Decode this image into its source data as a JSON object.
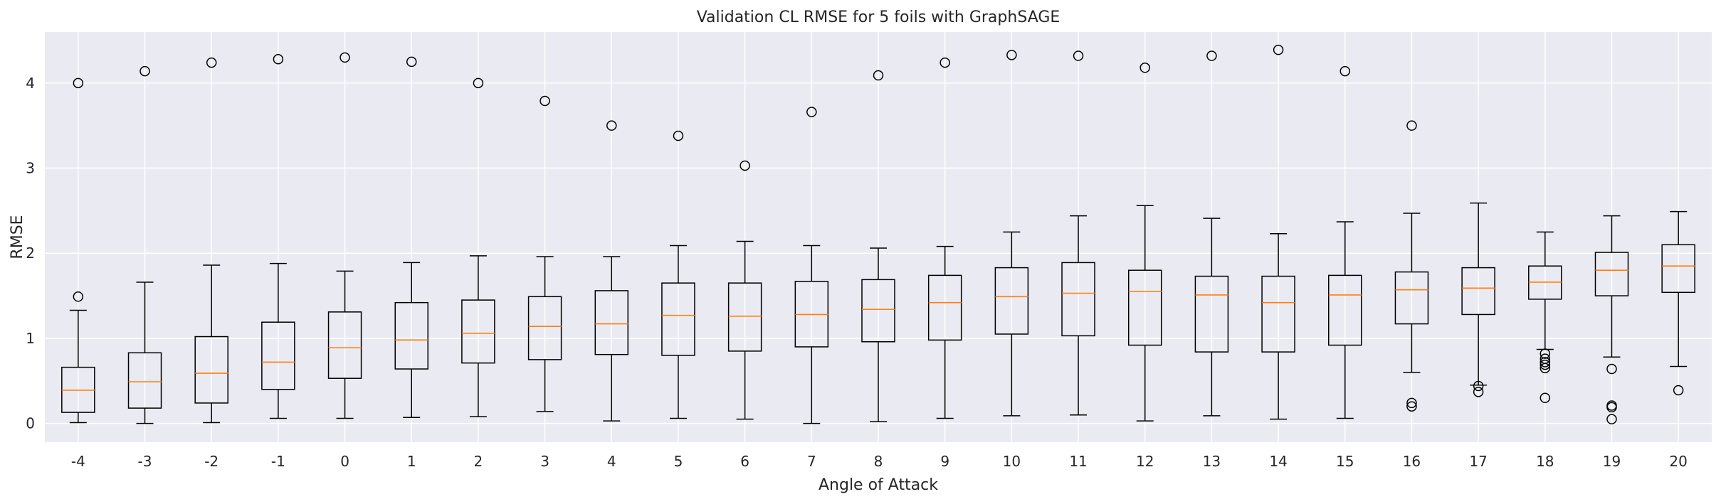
{
  "chart_data": {
    "type": "box",
    "title": "Validation CL RMSE for 5 foils with GraphSAGE",
    "xlabel": "Angle of Attack",
    "ylabel": "RMSE",
    "ylim": [
      -0.22,
      4.6
    ],
    "yticks": [
      0,
      1,
      2,
      3,
      4
    ],
    "grid": true,
    "categories": [
      "-4",
      "-3",
      "-2",
      "-1",
      "0",
      "1",
      "2",
      "3",
      "4",
      "5",
      "6",
      "7",
      "8",
      "9",
      "10",
      "11",
      "12",
      "13",
      "14",
      "15",
      "16",
      "17",
      "18",
      "19",
      "20"
    ],
    "boxes": [
      {
        "whisker_low": 0.01,
        "q1": 0.13,
        "median": 0.39,
        "q3": 0.66,
        "whisker_high": 1.33,
        "outliers": [
          1.49,
          4.0
        ]
      },
      {
        "whisker_low": 0.0,
        "q1": 0.18,
        "median": 0.49,
        "q3": 0.83,
        "whisker_high": 1.66,
        "outliers": [
          4.14
        ]
      },
      {
        "whisker_low": 0.01,
        "q1": 0.24,
        "median": 0.59,
        "q3": 1.02,
        "whisker_high": 1.86,
        "outliers": [
          4.24
        ]
      },
      {
        "whisker_low": 0.06,
        "q1": 0.4,
        "median": 0.72,
        "q3": 1.19,
        "whisker_high": 1.88,
        "outliers": [
          4.28
        ]
      },
      {
        "whisker_low": 0.06,
        "q1": 0.53,
        "median": 0.89,
        "q3": 1.31,
        "whisker_high": 1.79,
        "outliers": [
          4.3
        ]
      },
      {
        "whisker_low": 0.07,
        "q1": 0.64,
        "median": 0.98,
        "q3": 1.42,
        "whisker_high": 1.89,
        "outliers": [
          4.25
        ]
      },
      {
        "whisker_low": 0.08,
        "q1": 0.71,
        "median": 1.06,
        "q3": 1.45,
        "whisker_high": 1.97,
        "outliers": [
          4.0
        ]
      },
      {
        "whisker_low": 0.14,
        "q1": 0.75,
        "median": 1.14,
        "q3": 1.49,
        "whisker_high": 1.96,
        "outliers": [
          3.79
        ]
      },
      {
        "whisker_low": 0.03,
        "q1": 0.81,
        "median": 1.17,
        "q3": 1.56,
        "whisker_high": 1.96,
        "outliers": [
          3.5
        ]
      },
      {
        "whisker_low": 0.06,
        "q1": 0.8,
        "median": 1.27,
        "q3": 1.65,
        "whisker_high": 2.09,
        "outliers": [
          3.38
        ]
      },
      {
        "whisker_low": 0.05,
        "q1": 0.85,
        "median": 1.26,
        "q3": 1.65,
        "whisker_high": 2.14,
        "outliers": [
          3.03
        ]
      },
      {
        "whisker_low": 0.0,
        "q1": 0.9,
        "median": 1.28,
        "q3": 1.67,
        "whisker_high": 2.09,
        "outliers": [
          3.66
        ]
      },
      {
        "whisker_low": 0.02,
        "q1": 0.96,
        "median": 1.34,
        "q3": 1.69,
        "whisker_high": 2.06,
        "outliers": [
          4.09
        ]
      },
      {
        "whisker_low": 0.06,
        "q1": 0.98,
        "median": 1.42,
        "q3": 1.74,
        "whisker_high": 2.08,
        "outliers": [
          4.24
        ]
      },
      {
        "whisker_low": 0.09,
        "q1": 1.05,
        "median": 1.49,
        "q3": 1.83,
        "whisker_high": 2.25,
        "outliers": [
          4.33
        ]
      },
      {
        "whisker_low": 0.1,
        "q1": 1.03,
        "median": 1.53,
        "q3": 1.89,
        "whisker_high": 2.44,
        "outliers": [
          4.32
        ]
      },
      {
        "whisker_low": 0.03,
        "q1": 0.92,
        "median": 1.55,
        "q3": 1.8,
        "whisker_high": 2.56,
        "outliers": [
          4.18
        ]
      },
      {
        "whisker_low": 0.09,
        "q1": 0.84,
        "median": 1.51,
        "q3": 1.73,
        "whisker_high": 2.41,
        "outliers": [
          4.32
        ]
      },
      {
        "whisker_low": 0.05,
        "q1": 0.84,
        "median": 1.42,
        "q3": 1.73,
        "whisker_high": 2.23,
        "outliers": [
          4.39
        ]
      },
      {
        "whisker_low": 0.06,
        "q1": 0.92,
        "median": 1.51,
        "q3": 1.74,
        "whisker_high": 2.37,
        "outliers": [
          4.14
        ]
      },
      {
        "whisker_low": 0.6,
        "q1": 1.17,
        "median": 1.57,
        "q3": 1.78,
        "whisker_high": 2.47,
        "outliers": [
          0.2,
          0.24,
          3.5
        ]
      },
      {
        "whisker_low": 0.45,
        "q1": 1.28,
        "median": 1.59,
        "q3": 1.83,
        "whisker_high": 2.59,
        "outliers": [
          0.37,
          0.44
        ]
      },
      {
        "whisker_low": 0.87,
        "q1": 1.46,
        "median": 1.66,
        "q3": 1.85,
        "whisker_high": 2.25,
        "outliers": [
          0.3,
          0.65,
          0.69,
          0.72,
          0.76,
          0.82
        ]
      },
      {
        "whisker_low": 0.78,
        "q1": 1.5,
        "median": 1.8,
        "q3": 2.01,
        "whisker_high": 2.44,
        "outliers": [
          0.05,
          0.19,
          0.21,
          0.64
        ]
      },
      {
        "whisker_low": 0.67,
        "q1": 1.54,
        "median": 1.85,
        "q3": 2.1,
        "whisker_high": 2.49,
        "outliers": [
          0.39
        ]
      }
    ],
    "colors": {
      "background": "#eaeaf2",
      "grid": "#ffffff",
      "box": "#000000",
      "median": "#ff7f0e",
      "text": "#262626"
    }
  }
}
